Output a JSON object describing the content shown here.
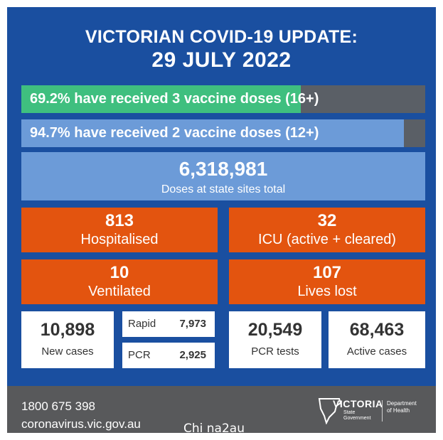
{
  "title": {
    "line1": "VICTORIAN COVID-19 UPDATE:",
    "line2": "29 JULY 2022"
  },
  "vaccination": {
    "three_dose": {
      "label": "69.2% have received 3 vaccine doses (16+)",
      "percent": 69.2
    },
    "two_dose": {
      "label": "94.7% have received 2 vaccine doses (12+)",
      "percent": 94.7
    }
  },
  "doses_state_sites": {
    "value": "6,318,981",
    "label": "Doses at state sites total"
  },
  "hospitalised": {
    "value": "813",
    "label": "Hospitalised"
  },
  "icu": {
    "value": "32",
    "label": "ICU (active + cleared)"
  },
  "ventilated": {
    "value": "10",
    "label": "Ventilated"
  },
  "lives_lost": {
    "value": "107",
    "label": "Lives lost"
  },
  "new_cases": {
    "value": "10,898",
    "label": "New cases"
  },
  "rapid": {
    "label": "Rapid",
    "value": "7,973"
  },
  "pcr": {
    "label": "PCR",
    "value": "2,925"
  },
  "pcr_tests": {
    "value": "20,549",
    "label": "PCR tests"
  },
  "active_cases": {
    "value": "68,463",
    "label": "Active cases"
  },
  "footer": {
    "phone": "1800 675 398",
    "website": "coronavirus.vic.gov.au",
    "watermark": "Chi na2au",
    "logo_name": "VICTORIA",
    "logo_sub1": "State",
    "logo_sub2": "Government",
    "dept_line1": "Department",
    "dept_line2": "of Health",
    "logo_icon": "victoria-map-icon"
  },
  "colors": {
    "background": "#1a4fa0",
    "green_bar": "#3fbf7f",
    "blue_bar": "#6c9bd8",
    "orange": "#e3540f",
    "footer": "#58595b"
  }
}
